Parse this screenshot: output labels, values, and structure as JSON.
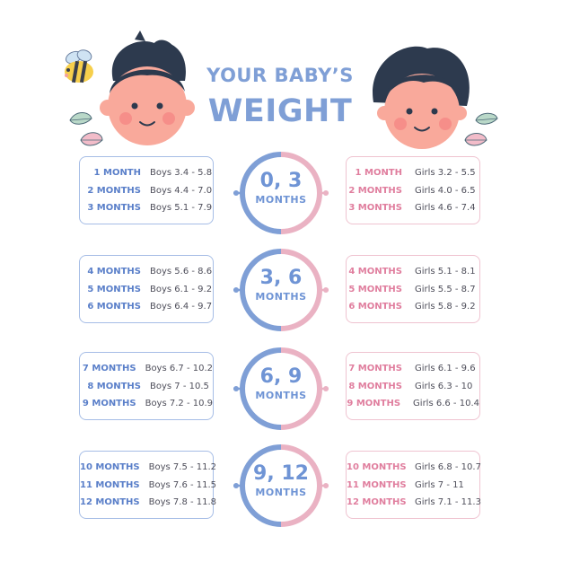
{
  "title": {
    "line1": "YOUR BABY’S",
    "line2": "WEIGHT"
  },
  "colors": {
    "boys": "#7f9fd6",
    "girls": "#eab2c3",
    "boys_label": "#5a7fc9",
    "girls_label": "#e07e9e",
    "value_text": "#4e4e5a"
  },
  "icons": [
    "bee-icon",
    "baby-boy-icon",
    "baby-girl-icon",
    "leaf-icon"
  ],
  "groups": [
    {
      "range": "0, 3",
      "unit": "MONTHS",
      "boys": [
        {
          "month": "1 MONTH",
          "value": "Boys 3.4 - 5.8"
        },
        {
          "month": "2 MONTHS",
          "value": "Boys 4.4 - 7.0"
        },
        {
          "month": "3 MONTHS",
          "value": "Boys 5.1 - 7.9"
        }
      ],
      "girls": [
        {
          "month": "1 MONTH",
          "value": "Girls 3.2 - 5.5"
        },
        {
          "month": "2 MONTHS",
          "value": "Girls 4.0 - 6.5"
        },
        {
          "month": "3 MONTHS",
          "value": "Girls 4.6 - 7.4"
        }
      ]
    },
    {
      "range": "3, 6",
      "unit": "MONTHS",
      "boys": [
        {
          "month": "4 MONTHS",
          "value": "Boys 5.6 - 8.6"
        },
        {
          "month": "5 MONTHS",
          "value": "Boys 6.1 - 9.2"
        },
        {
          "month": "6 MONTHS",
          "value": "Boys 6.4 - 9.7"
        }
      ],
      "girls": [
        {
          "month": "4 MONTHS",
          "value": "Girls 5.1 - 8.1"
        },
        {
          "month": "5 MONTHS",
          "value": "Girls 5.5 - 8.7"
        },
        {
          "month": "6 MONTHS",
          "value": "Girls 5.8 - 9.2"
        }
      ]
    },
    {
      "range": "6, 9",
      "unit": "MONTHS",
      "boys": [
        {
          "month": "7 MONTHS",
          "value": "Boys 6.7 - 10.2"
        },
        {
          "month": "8 MONTHS",
          "value": "Boys 7 - 10.5"
        },
        {
          "month": "9 MONTHS",
          "value": "Boys 7.2 - 10.9"
        }
      ],
      "girls": [
        {
          "month": "7 MONTHS",
          "value": "Girls 6.1 - 9.6"
        },
        {
          "month": "8 MONTHS",
          "value": "Girls 6.3 - 10"
        },
        {
          "month": "9 MONTHS",
          "value": "Girls 6.6 - 10.4"
        }
      ]
    },
    {
      "range": "9, 12",
      "unit": "MONTHS",
      "boys": [
        {
          "month": "10 MONTHS",
          "value": "Boys 7.5 - 11.2"
        },
        {
          "month": "11 MONTHS",
          "value": "Boys 7.6 - 11.5"
        },
        {
          "month": "12 MONTHS",
          "value": "Boys 7.8 - 11.8"
        }
      ],
      "girls": [
        {
          "month": "10 MONTHS",
          "value": "Girls 6.8 - 10.7"
        },
        {
          "month": "11 MONTHS",
          "value": "Girls 7 - 11"
        },
        {
          "month": "12 MONTHS",
          "value": "Girls 7.1 - 11.3"
        }
      ]
    }
  ]
}
